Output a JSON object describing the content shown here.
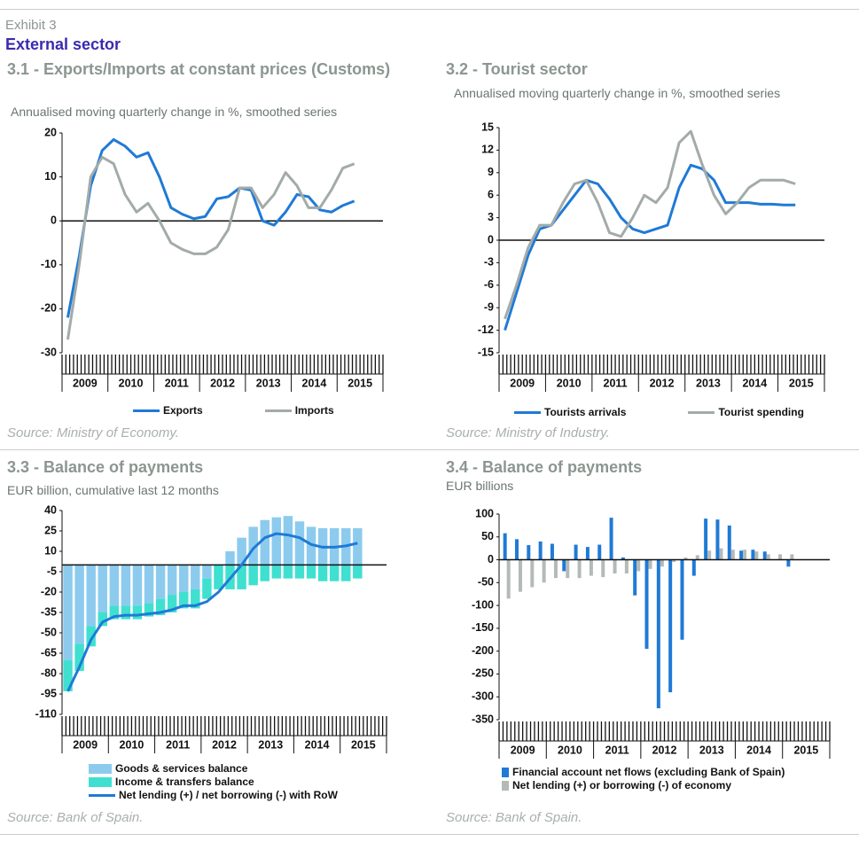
{
  "exhibit": "Exhibit 3",
  "heading": "External sector",
  "chart_data": [
    {
      "type": "line",
      "title": "3.1 - Exports/Imports at constant prices (Customs)",
      "subtitle": "Annualised moving quarterly change in %, smoothed series",
      "source": "Source: Ministry of Economy.",
      "categories": [
        "2009",
        null,
        null,
        null,
        "2010",
        null,
        null,
        null,
        "2011",
        null,
        null,
        null,
        "2012",
        null,
        null,
        null,
        "2013",
        null,
        null,
        null,
        "2014",
        null,
        null,
        null,
        "2015",
        null
      ],
      "series": [
        {
          "name": "Exports",
          "color": "#1f7ad6",
          "values": [
            -22,
            -8,
            8,
            16,
            18.5,
            17,
            14.5,
            15.5,
            10,
            3,
            1.5,
            0.5,
            1,
            5,
            5.5,
            7.5,
            7,
            0,
            -1,
            2,
            6,
            5.5,
            2.5,
            2,
            3.5,
            4.5
          ]
        },
        {
          "name": "Imports",
          "color": "#a3aba8",
          "values": [
            -27,
            -10,
            10,
            14.5,
            13,
            6,
            2,
            4,
            0,
            -5,
            -6.5,
            -7.5,
            -7.5,
            -6,
            -2,
            7.5,
            7.5,
            3,
            6,
            11,
            8,
            3,
            3,
            7,
            12,
            13
          ]
        }
      ],
      "ylim": [
        -30,
        20
      ],
      "yticks": [
        -30,
        -20,
        -10,
        0,
        10,
        20
      ]
    },
    {
      "type": "line",
      "title": "3.2 - Tourist sector",
      "subtitle": "Annualised moving quarterly change in %, smoothed series",
      "source": "Source: Ministry of Industry.",
      "categories": [
        "2009",
        null,
        null,
        null,
        "2010",
        null,
        null,
        null,
        "2011",
        null,
        null,
        null,
        "2012",
        null,
        null,
        null,
        "2013",
        null,
        null,
        null,
        "2014",
        null,
        null,
        null,
        "2015",
        null
      ],
      "series": [
        {
          "name": "Tourists arrivals",
          "color": "#1f7ad6",
          "values": [
            -12,
            -7,
            -2,
            1.5,
            2,
            4,
            6,
            8,
            7.5,
            5.5,
            3,
            1.5,
            1,
            1.5,
            2,
            7,
            10,
            9.5,
            8,
            5,
            5,
            5,
            4.8,
            4.8,
            4.7,
            4.7
          ]
        },
        {
          "name": "Tourist spending",
          "color": "#a3aba8",
          "values": [
            -10.5,
            -6,
            -1,
            2,
            2,
            5,
            7.5,
            8,
            5,
            1,
            0.5,
            3,
            6,
            5,
            7,
            13,
            14.5,
            10,
            6,
            3.5,
            5,
            7,
            8,
            8,
            8,
            7.5
          ]
        }
      ],
      "ylim": [
        -15,
        15
      ],
      "yticks": [
        -15,
        -12,
        -9,
        -6,
        -3,
        0,
        3,
        6,
        9,
        12,
        15
      ]
    },
    {
      "type": "combo",
      "title": "3.3 -  Balance of payments",
      "subtitle": "EUR billion, cumulative last 12 months",
      "source": "Source: Bank of Spain.",
      "stacked": true,
      "categories": [
        "2009",
        null,
        null,
        null,
        "2010",
        null,
        null,
        null,
        "2011",
        null,
        null,
        null,
        "2012",
        null,
        null,
        null,
        "2013",
        null,
        null,
        null,
        "2014",
        null,
        null,
        null,
        "2015",
        null
      ],
      "series": [
        {
          "name": "Goods & services balance",
          "type": "bar",
          "color": "#8ccbee",
          "values": [
            -70,
            -58,
            -45,
            -35,
            -30,
            -30,
            -30,
            -28,
            -25,
            -22,
            -20,
            -18,
            -10,
            0,
            10,
            20,
            28,
            33,
            35,
            36,
            32,
            28,
            27,
            27,
            27,
            27
          ]
        },
        {
          "name": "Income & transfers balance",
          "type": "bar",
          "color": "#3fe0d0",
          "values": [
            -23,
            -20,
            -15,
            -10,
            -10,
            -10,
            -10,
            -10,
            -12,
            -13,
            -12,
            -14,
            -15,
            -18,
            -18,
            -18,
            -15,
            -12,
            -10,
            -10,
            -10,
            -10,
            -12,
            -12,
            -12,
            -10
          ]
        },
        {
          "name": "Net lending (+) / net borrowing (-) with RoW",
          "type": "line",
          "color": "#1f7ad6",
          "values": [
            -93,
            -75,
            -55,
            -42,
            -38,
            -37,
            -37,
            -36,
            -35,
            -33,
            -30,
            -30,
            -27,
            -20,
            -10,
            0,
            12,
            20,
            23,
            22,
            20,
            15,
            13,
            13,
            14,
            16
          ]
        }
      ],
      "ylim": [
        -110,
        40
      ],
      "yticks": [
        -110,
        -95,
        -80,
        -65,
        -50,
        -35,
        -20,
        -5,
        10,
        25,
        40
      ]
    },
    {
      "type": "bar",
      "title": "3.4 - Balance of payments",
      "subtitle": "EUR billions",
      "source": "Source: Bank of Spain.",
      "categories": [
        "2009",
        null,
        null,
        null,
        "2010",
        null,
        null,
        null,
        "2011",
        null,
        null,
        null,
        "2012",
        null,
        null,
        null,
        "2013",
        null,
        null,
        null,
        "2014",
        null,
        null,
        null,
        "2015"
      ],
      "series": [
        {
          "name": "Financial account net flows (excluding Bank of Spain)",
          "color": "#1f7ad6",
          "values": [
            58,
            45,
            32,
            40,
            35,
            -25,
            33,
            28,
            33,
            92,
            5,
            -78,
            -195,
            -325,
            -290,
            -175,
            -35,
            90,
            88,
            75,
            20,
            22,
            18,
            0,
            -15
          ]
        },
        {
          "name": "Net lending (+) or borrowing (-) of economy",
          "color": "#b4bab7",
          "values": [
            -85,
            -70,
            -60,
            -50,
            -40,
            -40,
            -40,
            -35,
            -38,
            -30,
            -30,
            -25,
            -20,
            -15,
            -5,
            5,
            10,
            20,
            25,
            22,
            22,
            18,
            12,
            12,
            12
          ]
        }
      ],
      "ylim": [
        -350,
        100
      ],
      "yticks": [
        -350,
        -300,
        -250,
        -200,
        -150,
        -100,
        -50,
        0,
        50,
        100
      ]
    }
  ]
}
